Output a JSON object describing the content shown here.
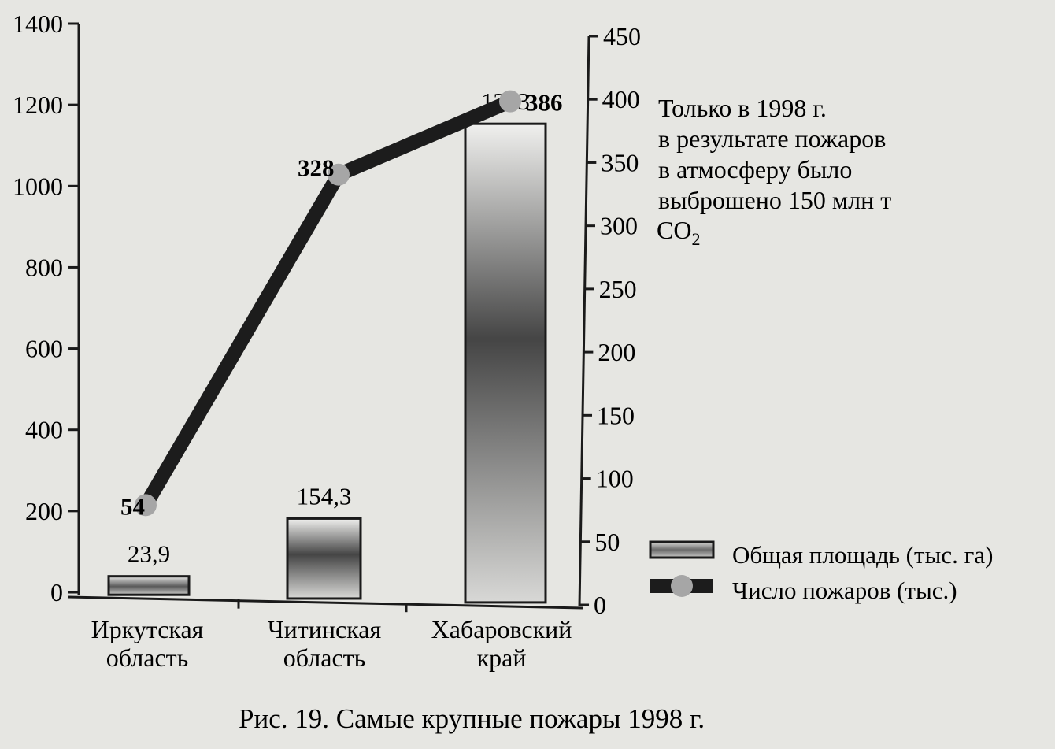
{
  "chart_data": {
    "type": "bar",
    "categories": [
      [
        "Иркутская",
        "область"
      ],
      [
        "Читинская",
        "область"
      ],
      [
        "Хабаровский",
        "край"
      ]
    ],
    "series": [
      {
        "name": "Общая площадь (тыс. га)",
        "kind": "bar",
        "axis": "left",
        "values": [
          23.9,
          154.3,
          1293
        ],
        "labels": [
          "23,9",
          "154,3",
          "1293"
        ]
      },
      {
        "name": "Число пожаров (тыс.)",
        "kind": "line",
        "axis": "right",
        "values": [
          54,
          328,
          386
        ],
        "labels": [
          "54",
          "328",
          "386"
        ]
      }
    ],
    "y_left": {
      "min": 0,
      "max": 1400,
      "ticks": [
        "0",
        "200",
        "400",
        "600",
        "800",
        "1000",
        "1200",
        "1400"
      ]
    },
    "y_right": {
      "min": 0,
      "max": 450,
      "ticks": [
        "0",
        "50",
        "100",
        "150",
        "200",
        "250",
        "300",
        "350",
        "400",
        "450"
      ]
    },
    "annotation": {
      "lines": [
        "Только в 1998 г.",
        "в результате пожаров",
        "в атмосферу было",
        "выброшено 150 млн  т"
      ],
      "formula": {
        "base": "CO",
        "sub": "2"
      }
    },
    "legend_position": "bottom-right",
    "grid": false,
    "caption": "Рис. 19. Самые крупные пожары 1998 г."
  },
  "colors": {
    "background": "#e6e6e2",
    "ink": "#1a1a1a",
    "line": "#1c1c1c",
    "marker": "#a6a6a6",
    "bar_dark": "#4a4a4a",
    "bar_light": "#dcdcdc"
  }
}
